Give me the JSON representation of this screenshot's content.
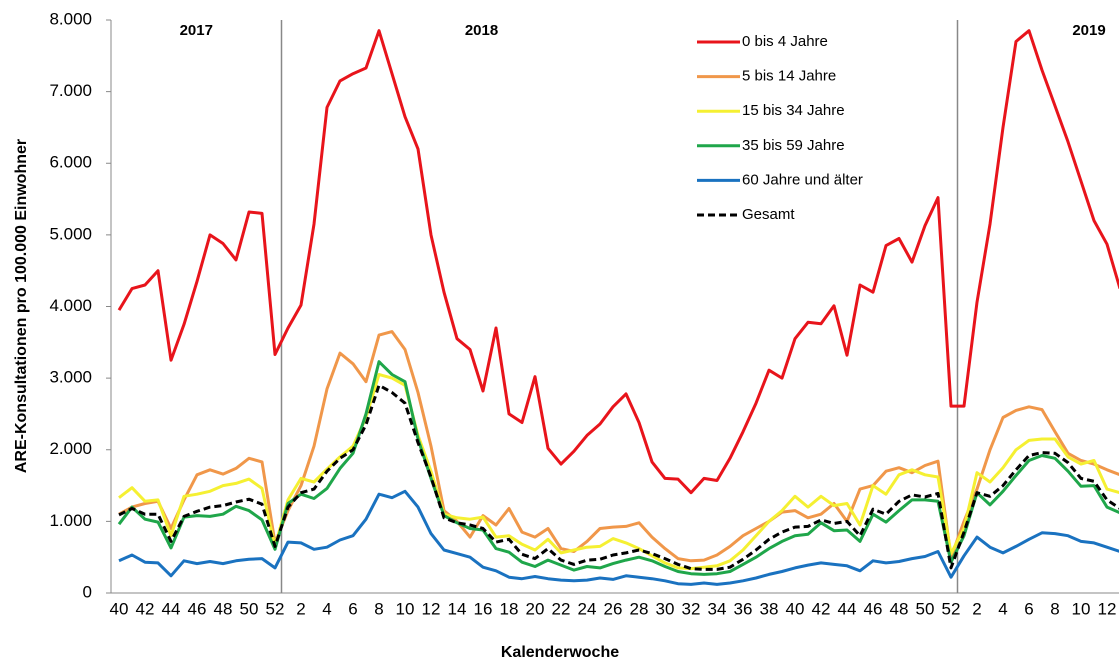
{
  "chart_data": {
    "type": "line",
    "x_label": "Kalenderwoche",
    "y_label": "ARE-Konsultationen pro 100.000 Einwohner",
    "categories": [
      "40",
      null,
      "42",
      null,
      "44",
      null,
      "46",
      null,
      "48",
      null,
      "50",
      null,
      "52",
      null,
      "2",
      null,
      "4",
      null,
      "6",
      null,
      "8",
      null,
      "10",
      null,
      "12",
      null,
      "14",
      null,
      "16",
      null,
      "18",
      null,
      "20",
      null,
      "22",
      null,
      "24",
      null,
      "26",
      null,
      "28",
      null,
      "30",
      null,
      "32",
      null,
      "34",
      null,
      "36",
      null,
      "38",
      null,
      "40",
      null,
      "42",
      null,
      "44",
      null,
      "46",
      null,
      "48",
      null,
      "50",
      null,
      "52",
      null,
      "2",
      null,
      "4",
      null,
      "6",
      null,
      "8",
      null,
      "10",
      null,
      "12",
      null
    ],
    "years": [
      "2017",
      "2018",
      "2019"
    ],
    "ylim": [
      0,
      8000
    ],
    "yticks": [
      0,
      {
        "value": 1000,
        "label": "1.000"
      },
      {
        "value": 2000,
        "label": "2.000"
      },
      {
        "value": 3000,
        "label": "3.000"
      },
      {
        "value": 4000,
        "label": "4.000"
      },
      {
        "value": 5000,
        "label": "5.000"
      },
      {
        "value": 6000,
        "label": "6.000"
      },
      {
        "value": 7000,
        "label": "7.000"
      },
      {
        "value": 8000,
        "label": "8.000"
      }
    ],
    "grid": false,
    "legend_loc": "upper right",
    "series": [
      {
        "name": "0 bis 4 Jahre",
        "color": "#e8141b",
        "dash": false,
        "values": [
          3950,
          4250,
          4300,
          4500,
          3250,
          3750,
          4350,
          5000,
          4880,
          4650,
          5320,
          5300,
          3330,
          3700,
          4020,
          5150,
          6780,
          7150,
          7250,
          7330,
          7850,
          7250,
          6650,
          6200,
          5000,
          4200,
          3550,
          3400,
          2820,
          3700,
          2500,
          2380,
          3020,
          2020,
          1800,
          1980,
          2200,
          2360,
          2600,
          2780,
          2380,
          1830,
          1600,
          1590,
          1400,
          1600,
          1570,
          1880,
          2250,
          2650,
          3110,
          3000,
          3550,
          3780,
          3760,
          4010,
          3320,
          4300,
          4200,
          4850,
          4950,
          4620,
          5130,
          5520,
          2610,
          2610,
          4060,
          5150,
          6500,
          7700,
          7850,
          7300,
          6800,
          6300,
          5750,
          5200,
          4870,
          4250
        ]
      },
      {
        "name": "5 bis 14 Jahre",
        "color": "#f0974a",
        "dash": false,
        "values": [
          1100,
          1200,
          1250,
          1280,
          900,
          1300,
          1650,
          1720,
          1660,
          1740,
          1880,
          1830,
          700,
          1150,
          1500,
          2050,
          2850,
          3350,
          3200,
          2950,
          3600,
          3650,
          3400,
          2800,
          2050,
          1150,
          1000,
          780,
          1080,
          950,
          1180,
          850,
          780,
          900,
          620,
          580,
          720,
          900,
          920,
          930,
          980,
          780,
          620,
          480,
          450,
          460,
          530,
          650,
          800,
          900,
          1000,
          1130,
          1150,
          1050,
          1100,
          1250,
          1000,
          1450,
          1500,
          1700,
          1750,
          1680,
          1780,
          1840,
          500,
          1000,
          1450,
          2000,
          2450,
          2550,
          2600,
          2560,
          2250,
          1950,
          1850,
          1800,
          1720,
          1650
        ]
      },
      {
        "name": "15 bis 34 Jahre",
        "color": "#f5f032",
        "dash": false,
        "values": [
          1330,
          1470,
          1280,
          1300,
          800,
          1350,
          1380,
          1420,
          1500,
          1530,
          1590,
          1460,
          650,
          1300,
          1600,
          1550,
          1730,
          1900,
          2050,
          2450,
          3050,
          3000,
          2900,
          2200,
          1700,
          1100,
          1050,
          1030,
          1060,
          780,
          800,
          680,
          600,
          750,
          560,
          600,
          640,
          650,
          760,
          700,
          620,
          520,
          420,
          350,
          340,
          360,
          380,
          450,
          600,
          800,
          1000,
          1150,
          1350,
          1200,
          1350,
          1220,
          1250,
          950,
          1500,
          1380,
          1650,
          1720,
          1650,
          1620,
          550,
          900,
          1680,
          1550,
          1750,
          2000,
          2130,
          2150,
          2150,
          1900,
          1800,
          1850,
          1450,
          1400
        ]
      },
      {
        "name": "35 bis 59 Jahre",
        "color": "#1fa64a",
        "dash": false,
        "values": [
          960,
          1200,
          1030,
          990,
          630,
          1060,
          1080,
          1070,
          1100,
          1210,
          1150,
          1020,
          610,
          1250,
          1380,
          1320,
          1460,
          1740,
          1950,
          2500,
          3230,
          3050,
          2950,
          2150,
          1600,
          1080,
          980,
          900,
          880,
          620,
          570,
          430,
          370,
          460,
          390,
          320,
          370,
          350,
          410,
          460,
          500,
          450,
          370,
          300,
          270,
          260,
          270,
          300,
          400,
          500,
          620,
          720,
          800,
          820,
          980,
          870,
          880,
          720,
          1100,
          990,
          1150,
          1300,
          1300,
          1280,
          430,
          800,
          1400,
          1230,
          1420,
          1640,
          1850,
          1920,
          1880,
          1700,
          1490,
          1500,
          1200,
          1120
        ]
      },
      {
        "name": "60 Jahre und älter",
        "color": "#1a72c0",
        "dash": false,
        "values": [
          450,
          530,
          430,
          420,
          240,
          450,
          410,
          440,
          410,
          450,
          470,
          480,
          350,
          710,
          700,
          610,
          640,
          740,
          800,
          1030,
          1380,
          1330,
          1420,
          1200,
          830,
          600,
          550,
          500,
          360,
          310,
          220,
          200,
          230,
          200,
          180,
          170,
          180,
          210,
          190,
          240,
          220,
          200,
          170,
          130,
          120,
          140,
          120,
          140,
          170,
          210,
          260,
          300,
          350,
          390,
          420,
          400,
          380,
          310,
          450,
          420,
          440,
          480,
          510,
          580,
          220,
          520,
          780,
          640,
          560,
          650,
          750,
          840,
          830,
          800,
          720,
          700,
          640,
          580
        ]
      },
      {
        "name": "Gesamt",
        "color": "#000000",
        "dash": true,
        "values": [
          1090,
          1180,
          1100,
          1100,
          720,
          1070,
          1140,
          1200,
          1220,
          1270,
          1310,
          1240,
          650,
          1200,
          1400,
          1450,
          1700,
          1880,
          2000,
          2350,
          2900,
          2800,
          2650,
          2100,
          1620,
          1050,
          980,
          950,
          900,
          710,
          750,
          540,
          480,
          620,
          460,
          400,
          460,
          470,
          530,
          560,
          600,
          550,
          480,
          400,
          340,
          330,
          330,
          360,
          470,
          600,
          750,
          850,
          920,
          930,
          1020,
          970,
          1000,
          800,
          1170,
          1100,
          1280,
          1370,
          1340,
          1390,
          350,
          850,
          1400,
          1350,
          1500,
          1720,
          1920,
          1960,
          1950,
          1820,
          1600,
          1560,
          1300,
          1180
        ]
      }
    ]
  }
}
